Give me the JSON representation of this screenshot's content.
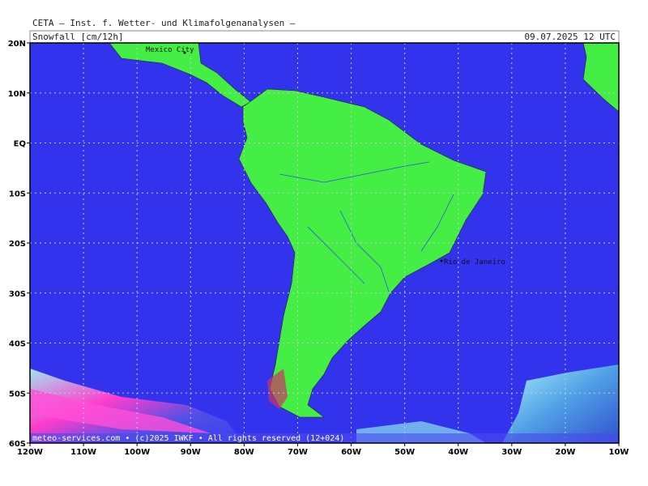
{
  "header": {
    "title": "CETA — Inst. f. Wetter- und Klimafolgenanalysen —",
    "variable": "Snowfall [cm/12h]",
    "datetime": "09.07.2025 12 UTC"
  },
  "map": {
    "lon_labels": [
      "120W",
      "110W",
      "100W",
      "90W",
      "80W",
      "70W",
      "60W",
      "50W",
      "40W",
      "30W",
      "20W",
      "10W"
    ],
    "lat_labels": [
      "20N",
      "10N",
      "EQ",
      "10S",
      "20S",
      "30S",
      "40S",
      "50S",
      "60S"
    ],
    "cities": [
      "Mexico City",
      "Rio de Janeiro"
    ]
  },
  "footer": "meteo-services.com • (c)2025 IWKF • All rights reserved (12+024)"
}
